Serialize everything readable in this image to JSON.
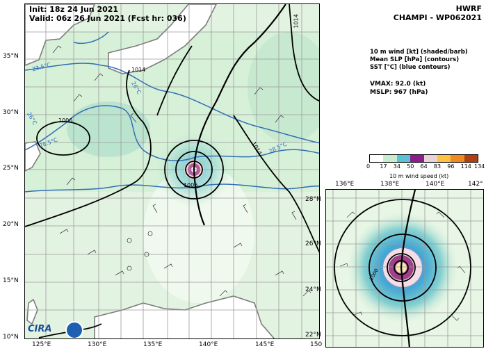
{
  "header": {
    "init_line": "Init:  18z 24 Jun 2021",
    "valid_line": "Valid: 06z 26 Jun 2021 (Fcst hr: 036)",
    "model": "HWRF",
    "storm": "CHAMPI - WP062021"
  },
  "legend": {
    "line1": "10 m wind [kt] (shaded/barb)",
    "line2": "Mean SLP [hPa] (contours)",
    "line3": "SST [°C] (blue contours)"
  },
  "stats": {
    "vmax": "VMAX:  92.0 (kt)",
    "mslp": "MSLP:  967 (hPa)"
  },
  "colorbar": {
    "title": "10 m wind speed (kt)",
    "ticks": [
      "0",
      "17",
      "34",
      "50",
      "64",
      "83",
      "96",
      "114",
      "134"
    ],
    "colors": [
      "#ffffff",
      "#c9ecd0",
      "#58c2d6",
      "#8b1e8d",
      "#e8d4d8",
      "#ffc240",
      "#f08a20",
      "#b04010"
    ]
  },
  "main_map": {
    "lon_labels": [
      "125°E",
      "130°E",
      "135°E",
      "140°E",
      "145°E",
      "150"
    ],
    "lat_labels": [
      "35°N",
      "30°N",
      "25°N",
      "20°N",
      "15°N",
      "10°N"
    ],
    "sst_labels": [
      "23.5°C",
      "26°C",
      "28.5°C",
      "26°C",
      "28.5°C"
    ],
    "slp_labels": [
      "1014",
      "1006",
      "1014",
      "1014",
      "1006"
    ],
    "logos": {
      "cira": "CIRA"
    },
    "land_color": "#a8a8a8",
    "ocean_color": "#e3f3e2",
    "sst_color": "#2f6fb5"
  },
  "inset_map": {
    "lon_labels": [
      "136°E",
      "138°E",
      "140°E",
      "142°"
    ],
    "lat_labels": [
      "28°N",
      "26°N",
      "24°N",
      "22°N"
    ],
    "slp_label": "1000"
  }
}
